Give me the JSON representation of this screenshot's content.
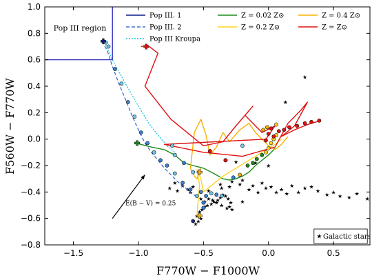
{
  "chart_data": {
    "type": "line",
    "xlabel": "F770W − F1000W",
    "ylabel": "F560W − F770W",
    "xlim": [
      -1.72,
      0.78
    ],
    "ylim": [
      -0.8,
      1.0
    ],
    "xticks": [
      -1.5,
      -1.0,
      -0.5,
      0.0,
      0.5
    ],
    "xtick_labels": [
      "−1.5",
      "−1.0",
      "−0.5",
      "0.0",
      "0.5"
    ],
    "yticks": [
      -0.8,
      -0.6,
      -0.4,
      -0.2,
      0.0,
      0.2,
      0.4,
      0.6,
      0.8,
      1.0
    ],
    "ytick_labels": [
      "−0.8",
      "−0.6",
      "−0.4",
      "−0.2",
      "0.0",
      "0.2",
      "0.4",
      "0.6",
      "0.8",
      "1.0"
    ],
    "grid": false,
    "legend_placement": "top",
    "popiii_box": {
      "x": [
        -1.72,
        -1.2
      ],
      "y": [
        0.6,
        1.0
      ],
      "color": "#1010b0"
    },
    "annotations": {
      "region_label": "Pop III region",
      "reddening_label": "E(B − V) = 0.25",
      "reddening_arrow": {
        "from": [
          -1.2,
          -0.6
        ],
        "to": [
          -0.95,
          -0.27
        ]
      },
      "galactic_legend": "Galactic stars"
    },
    "series": [
      {
        "name": "Pop III. 1",
        "color": "#0a1a8c",
        "dash": "",
        "width": 1.4,
        "x": [
          -1.28,
          -1.27,
          -1.26,
          -1.27,
          -1.28
        ],
        "y": [
          0.75,
          0.72,
          0.74,
          0.76,
          0.73
        ]
      },
      {
        "name": "Pop III. 2",
        "color": "#3b6fd6",
        "dash": "5,3",
        "width": 1.3,
        "x": [
          -1.28,
          -1.24,
          -1.2,
          -1.15,
          -1.1,
          -1.05,
          -1.0,
          -0.95,
          -0.9,
          -0.85,
          -0.8,
          -0.75,
          -0.7,
          -0.65,
          -0.6,
          -0.55
        ],
        "y": [
          0.74,
          0.67,
          0.55,
          0.42,
          0.3,
          0.18,
          0.07,
          -0.03,
          -0.1,
          -0.16,
          -0.22,
          -0.27,
          -0.32,
          -0.36,
          -0.4,
          -0.44
        ]
      },
      {
        "name": "Pop III Kroupa",
        "color": "#19c2e0",
        "dash": "2,2",
        "width": 1.3,
        "x": [
          -1.27,
          -1.2,
          -1.1,
          -1.0,
          -0.92,
          -0.85,
          -0.78,
          -0.72
        ],
        "y": [
          0.75,
          0.6,
          0.42,
          0.25,
          0.12,
          0.03,
          -0.05,
          -0.1
        ]
      },
      {
        "name": "Z = 0.02 Z⊙",
        "color": "#1a8a1a",
        "dash": "",
        "width": 1.4,
        "x": [
          -1.02,
          -0.9,
          -0.8,
          -0.72,
          -0.65,
          -0.58,
          -0.5,
          -0.42,
          -0.35,
          -0.3,
          -0.25,
          -0.2,
          -0.15,
          -0.1,
          -0.05,
          0.0,
          0.05
        ],
        "y": [
          -0.03,
          -0.06,
          -0.08,
          -0.12,
          -0.18,
          -0.2,
          -0.22,
          -0.26,
          -0.3,
          -0.31,
          -0.3,
          -0.28,
          -0.25,
          -0.2,
          -0.16,
          -0.12,
          -0.07
        ]
      },
      {
        "name": "Z = 0.2 Z⊙",
        "color": "#ffd21f",
        "dash": "",
        "width": 1.4,
        "x": [
          -0.55,
          -0.54,
          -0.53,
          -0.55,
          -0.52,
          -0.5,
          -0.45,
          -0.35,
          -0.25,
          -0.15,
          -0.05,
          0.05,
          0.1
        ],
        "y": [
          -0.58,
          -0.45,
          -0.35,
          -0.23,
          -0.3,
          -0.4,
          -0.36,
          -0.28,
          -0.22,
          -0.16,
          -0.1,
          -0.04,
          0.0
        ]
      },
      {
        "name": "Z = 0.4 Z⊙",
        "color": "#f7b000",
        "dash": "",
        "width": 1.4,
        "x": [
          -0.52,
          -0.55,
          -0.57,
          -0.6,
          -0.57,
          -0.52,
          -0.48,
          -0.45,
          -0.4,
          -0.35,
          -0.3,
          -0.22,
          -0.15,
          -0.1,
          -0.05,
          0.0,
          0.05,
          0.1,
          0.15
        ],
        "y": [
          -0.22,
          -0.3,
          -0.28,
          -0.22,
          0.05,
          0.15,
          0.03,
          -0.12,
          -0.06,
          0.05,
          -0.02,
          0.07,
          0.12,
          0.05,
          0.0,
          -0.05,
          -0.08,
          -0.04,
          0.02
        ]
      },
      {
        "name": "Z = Z⊙",
        "color": "#e01010",
        "dash": "",
        "width": 1.4,
        "x": [
          -0.98,
          -0.93,
          -0.85,
          -0.95,
          -0.75,
          -0.5,
          -0.35,
          -0.25,
          -0.12,
          -0.18,
          -0.05,
          0.05,
          -0.02,
          -0.8,
          -0.5,
          -0.2,
          0.05,
          0.15,
          0.25,
          0.3,
          0.2,
          0.1,
          0.2,
          0.3,
          0.4
        ],
        "y": [
          0.7,
          0.71,
          0.65,
          0.4,
          0.15,
          -0.05,
          -0.02,
          0.1,
          0.25,
          0.18,
          0.05,
          0.1,
          0.0,
          -0.04,
          -0.1,
          -0.13,
          -0.06,
          0.12,
          0.22,
          0.28,
          0.1,
          0.02,
          0.07,
          0.11,
          0.14
        ]
      }
    ],
    "markers": [
      {
        "x": -0.94,
        "y": 0.7,
        "color": "#e01010",
        "shape": "cross"
      },
      {
        "x": -1.01,
        "y": -0.03,
        "color": "#1a8a1a",
        "shape": "cross"
      },
      {
        "x": -0.53,
        "y": -0.25,
        "color": "#f7b000",
        "shape": "cross"
      },
      {
        "x": -0.53,
        "y": -0.58,
        "color": "#f7b000",
        "shape": "cross"
      },
      {
        "x": -1.27,
        "y": 0.74,
        "color": "#0a1a8c",
        "shape": "cross"
      }
    ],
    "model_points": [
      {
        "x": -1.25,
        "y": 0.73,
        "c": "#6ec6e8"
      },
      {
        "x": -1.23,
        "y": 0.7,
        "c": "#6ec6e8"
      },
      {
        "x": -1.18,
        "y": 0.53,
        "c": "#3a7fd0"
      },
      {
        "x": -1.13,
        "y": 0.42,
        "c": "#6ec6e8"
      },
      {
        "x": -1.08,
        "y": 0.28,
        "c": "#3a7fd0"
      },
      {
        "x": -1.03,
        "y": 0.17,
        "c": "#6ec6e8"
      },
      {
        "x": -0.98,
        "y": 0.05,
        "c": "#3a7fd0"
      },
      {
        "x": -0.93,
        "y": -0.03,
        "c": "#3a7fd0"
      },
      {
        "x": -0.88,
        "y": -0.1,
        "c": "#6ec6e8"
      },
      {
        "x": -0.83,
        "y": -0.16,
        "c": "#3a7fd0"
      },
      {
        "x": -0.78,
        "y": -0.2,
        "c": "#3a7fd0"
      },
      {
        "x": -0.74,
        "y": -0.05,
        "c": "#6ec6e8"
      },
      {
        "x": -0.72,
        "y": -0.26,
        "c": "#6ec6e8"
      },
      {
        "x": -0.66,
        "y": -0.33,
        "c": "#3a7fd0"
      },
      {
        "x": -0.6,
        "y": -0.38,
        "c": "#3a7fd0"
      },
      {
        "x": -0.55,
        "y": -0.43,
        "c": "#6ec6e8"
      },
      {
        "x": -0.52,
        "y": -0.4,
        "c": "#3a7fd0"
      },
      {
        "x": -0.48,
        "y": -0.43,
        "c": "#3a7fd0"
      },
      {
        "x": -0.44,
        "y": -0.41,
        "c": "#6ec6e8"
      },
      {
        "x": -0.4,
        "y": -0.42,
        "c": "#3a7fd0"
      },
      {
        "x": -0.36,
        "y": -0.43,
        "c": "#6ec6e8"
      },
      {
        "x": -0.5,
        "y": -0.48,
        "c": "#3a7fd0"
      },
      {
        "x": -0.5,
        "y": -0.52,
        "c": "#3a7fd0"
      },
      {
        "x": -0.58,
        "y": -0.62,
        "c": "#1f2c7a"
      },
      {
        "x": -0.2,
        "y": -0.05,
        "c": "#6ec6e8"
      },
      {
        "x": -0.33,
        "y": -0.16,
        "c": "#6ec6e8"
      },
      {
        "x": -0.27,
        "y": -0.29,
        "c": "#3a7fd0"
      },
      {
        "x": -0.22,
        "y": -0.27,
        "c": "#f7b000"
      },
      {
        "x": -0.16,
        "y": -0.2,
        "c": "#1a8a1a"
      },
      {
        "x": -0.12,
        "y": -0.18,
        "c": "#1a8a1a"
      },
      {
        "x": -0.09,
        "y": -0.15,
        "c": "#1a8a1a"
      },
      {
        "x": -0.05,
        "y": -0.12,
        "c": "#1a8a1a"
      },
      {
        "x": -0.02,
        "y": -0.1,
        "c": "#ffd21f"
      },
      {
        "x": 0.0,
        "y": -0.07,
        "c": "#ffd21f"
      },
      {
        "x": 0.02,
        "y": -0.03,
        "c": "#ffd21f"
      },
      {
        "x": 0.04,
        "y": 0.0,
        "c": "#ffd21f"
      },
      {
        "x": 0.06,
        "y": 0.03,
        "c": "#ffd21f"
      },
      {
        "x": -0.58,
        "y": -0.25,
        "c": "#6ec6e8"
      },
      {
        "x": -0.65,
        "y": -0.18,
        "c": "#3a7fd0"
      },
      {
        "x": -0.72,
        "y": -0.12,
        "c": "#6ec6e8"
      },
      {
        "x": -0.45,
        "y": -0.09,
        "c": "#e01010"
      },
      {
        "x": -0.33,
        "y": -0.16,
        "c": "#e01010"
      },
      {
        "x": -0.02,
        "y": -0.01,
        "c": "#e01010"
      },
      {
        "x": 0.0,
        "y": 0.04,
        "c": "#e01010"
      },
      {
        "x": 0.02,
        "y": 0.08,
        "c": "#e01010"
      },
      {
        "x": 0.04,
        "y": 0.02,
        "c": "#e01010"
      },
      {
        "x": 0.08,
        "y": 0.06,
        "c": "#e01010"
      },
      {
        "x": 0.12,
        "y": 0.07,
        "c": "#e01010"
      },
      {
        "x": 0.16,
        "y": 0.09,
        "c": "#e01010"
      },
      {
        "x": 0.22,
        "y": 0.1,
        "c": "#e01010"
      },
      {
        "x": 0.28,
        "y": 0.12,
        "c": "#e01010"
      },
      {
        "x": 0.33,
        "y": 0.13,
        "c": "#e01010"
      },
      {
        "x": 0.39,
        "y": 0.14,
        "c": "#e01010"
      },
      {
        "x": 0.06,
        "y": 0.11,
        "c": "#ffd21f"
      },
      {
        "x": -0.04,
        "y": 0.07,
        "c": "#f7b000"
      },
      {
        "x": -0.01,
        "y": 0.09,
        "c": "#f7b000"
      }
    ],
    "galactic_stars": {
      "x": [
        -0.56,
        -0.54,
        -0.52,
        -0.55,
        -0.53,
        -0.51,
        -0.49,
        -0.5,
        -0.47,
        -0.44,
        -0.42,
        -0.39,
        -0.37,
        -0.35,
        -0.33,
        -0.31,
        -0.29,
        -0.3,
        -0.28,
        -0.32,
        -0.36,
        -0.4,
        -0.43,
        -0.46,
        -0.49,
        -0.52,
        -0.72,
        -0.66,
        -0.62,
        -0.58,
        -0.46,
        -0.37,
        -0.3,
        -0.2,
        -0.15,
        -0.12,
        -0.08,
        -0.05,
        -0.02,
        0.02,
        0.06,
        0.1,
        0.14,
        0.18,
        0.23,
        0.28,
        0.33,
        0.38,
        0.45,
        0.5,
        0.55,
        0.62,
        0.68,
        0.76,
        -0.76,
        -0.7,
        -0.6,
        -0.25,
        -0.1,
        0.0,
        -0.2,
        -0.28,
        -0.22,
        -0.36,
        0.13,
        0.28
      ],
      "y": [
        -0.64,
        -0.62,
        -0.6,
        -0.58,
        -0.55,
        -0.53,
        -0.51,
        -0.48,
        -0.5,
        -0.49,
        -0.47,
        -0.46,
        -0.44,
        -0.42,
        -0.43,
        -0.45,
        -0.48,
        -0.51,
        -0.53,
        -0.52,
        -0.5,
        -0.48,
        -0.46,
        -0.45,
        -0.47,
        -0.45,
        -0.33,
        -0.35,
        -0.38,
        -0.36,
        -0.39,
        -0.34,
        -0.36,
        -0.31,
        -0.38,
        -0.35,
        -0.4,
        -0.33,
        -0.37,
        -0.36,
        -0.4,
        -0.38,
        -0.41,
        -0.35,
        -0.4,
        -0.37,
        -0.36,
        -0.39,
        -0.42,
        -0.4,
        -0.43,
        -0.44,
        -0.41,
        -0.45,
        -0.37,
        -0.39,
        -0.4,
        -0.17,
        -0.18,
        -0.2,
        -0.47,
        -0.32,
        -0.34,
        -0.37,
        0.28,
        0.47
      ]
    },
    "legend": [
      {
        "label_id": "pop1",
        "text": "Pop III. 1",
        "color": "#0a1a8c",
        "dash": ""
      },
      {
        "label_id": "pop2",
        "text": "Pop III. 2",
        "color": "#3b6fd6",
        "dash": "5,3"
      },
      {
        "label_id": "kroupa",
        "text": "Pop III Kroupa",
        "color": "#19c2e0",
        "dash": "2,2"
      },
      {
        "label_id": "z002",
        "text": "Z = 0.02 Z⊙",
        "color": "#1a8a1a",
        "dash": ""
      },
      {
        "label_id": "z02",
        "text": "Z = 0.2 Z⊙",
        "color": "#ffd21f",
        "dash": ""
      },
      {
        "label_id": "z04",
        "text": "Z = 0.4 Z⊙",
        "color": "#f7b000",
        "dash": ""
      },
      {
        "label_id": "zsun",
        "text": "Z = Z⊙",
        "color": "#e01010",
        "dash": ""
      }
    ]
  }
}
